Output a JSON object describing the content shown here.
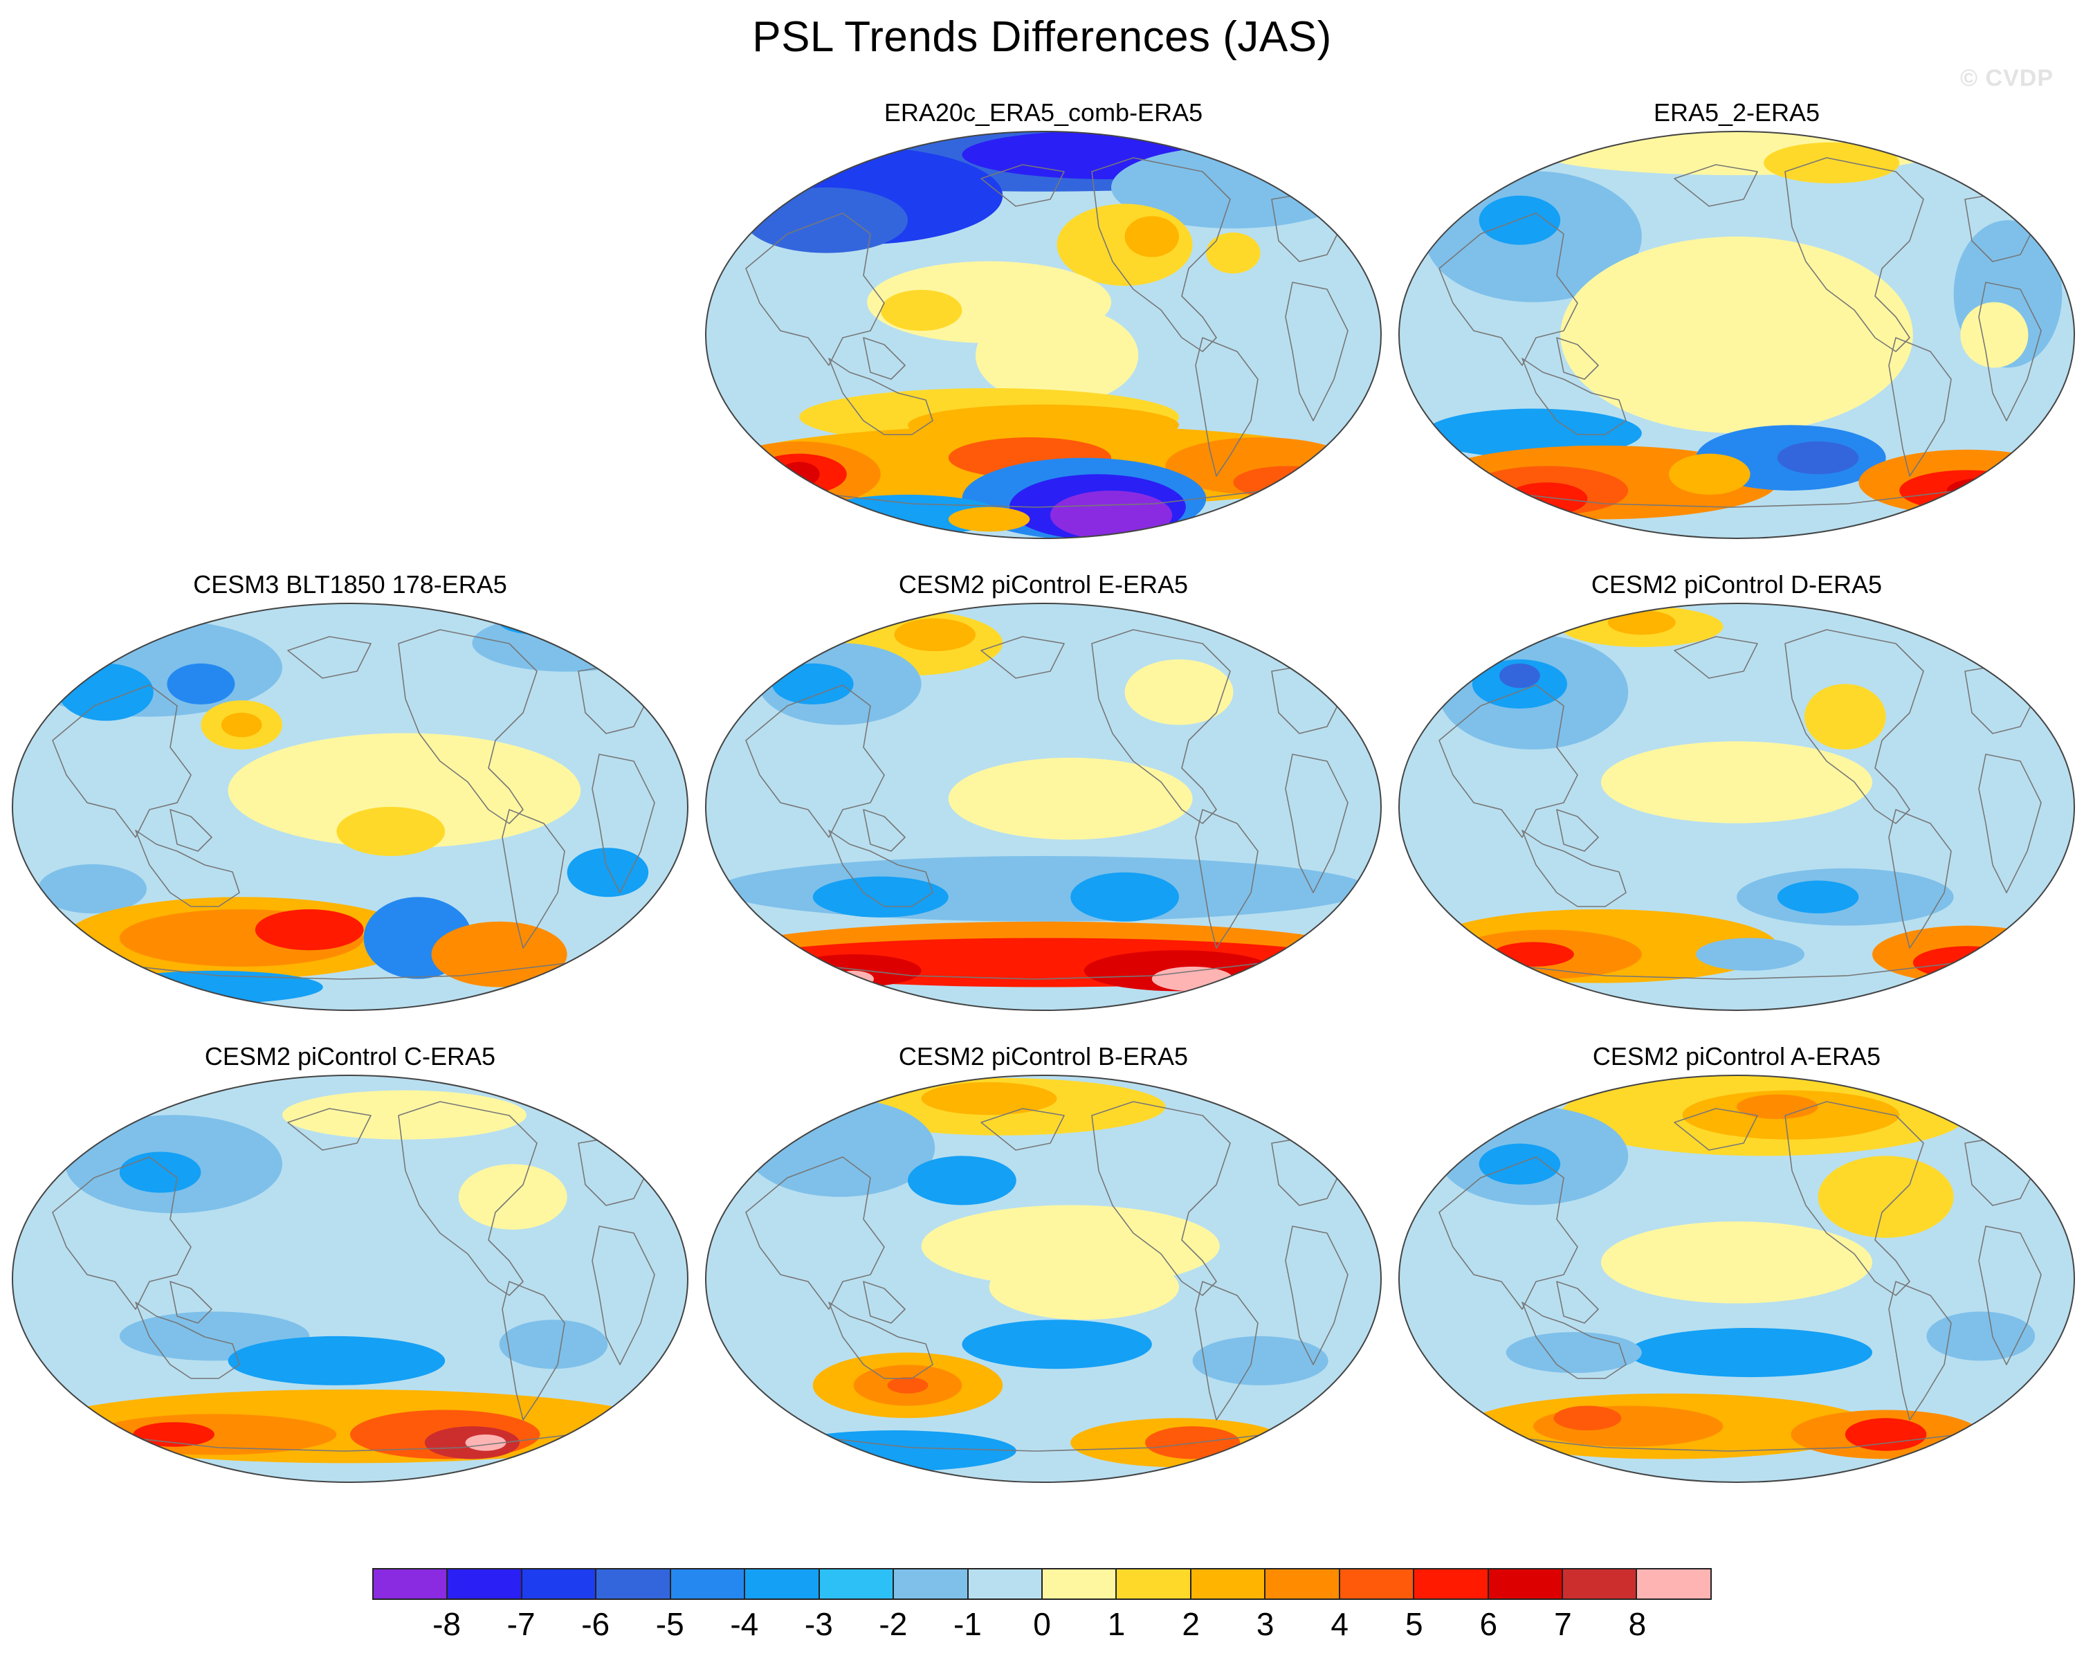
{
  "title": "PSL Trends Differences (JAS)",
  "watermark": "© CVDP",
  "panels": [
    {
      "title": "ERA20c_ERA5_comb-ERA5",
      "pattern": "era20c"
    },
    {
      "title": "ERA5_2-ERA5",
      "pattern": "era5_2"
    },
    {
      "title": "CESM3 BLT1850 178-ERA5",
      "pattern": "cesm3"
    },
    {
      "title": "CESM2 piControl E-ERA5",
      "pattern": "pic_e"
    },
    {
      "title": "CESM2 piControl D-ERA5",
      "pattern": "pic_d"
    },
    {
      "title": "CESM2 piControl C-ERA5",
      "pattern": "pic_c"
    },
    {
      "title": "CESM2 piControl B-ERA5",
      "pattern": "pic_b"
    },
    {
      "title": "CESM2 piControl A-ERA5",
      "pattern": "pic_a"
    }
  ],
  "colorbar": {
    "labels": [
      "-8",
      "-7",
      "-6",
      "-5",
      "-4",
      "-3",
      "-2",
      "-1",
      "0",
      "1",
      "2",
      "3",
      "4",
      "5",
      "6",
      "7",
      "8"
    ],
    "colors": [
      "#8a2be2",
      "#2a1ff5",
      "#1d3df0",
      "#3366dd",
      "#2588f0",
      "#14a0f5",
      "#2cc0f7",
      "#7ec0ea",
      "#b8dff0",
      "#fff7a0",
      "#ffd92a",
      "#ffb400",
      "#ff8c00",
      "#ff5a0a",
      "#ff1a00",
      "#dd0000",
      "#cc2e2e",
      "#ffb4b4"
    ]
  }
}
